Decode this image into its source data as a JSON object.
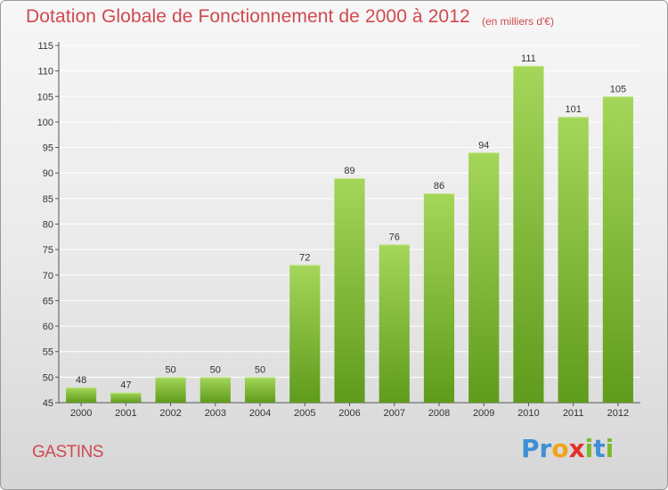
{
  "header": {
    "title": "Dotation Globale de Fonctionnement de 2000 à 2012",
    "unit_note": "(en milliers d'€)"
  },
  "footer": {
    "commune": "GASTINS",
    "logo_letters": [
      "P",
      "r",
      "o",
      "x",
      "i",
      "t",
      "i"
    ],
    "logo_colors": [
      "#3d8fd6",
      "#3d8fd6",
      "#f2a31a",
      "#e8302a",
      "#7cb82f",
      "#3d8fd6",
      "#7cb82f"
    ]
  },
  "colors": {
    "title": "#d0494f",
    "bar_light": "#a4d65a",
    "bar_dark": "#5f9b1c",
    "grid": "#ffffff"
  },
  "chart_data": {
    "type": "bar",
    "title": "Dotation Globale de Fonctionnement de 2000 à 2012",
    "subtitle": "(en milliers d'€)",
    "categories": [
      "2000",
      "2001",
      "2002",
      "2003",
      "2004",
      "2005",
      "2006",
      "2007",
      "2008",
      "2009",
      "2010",
      "2011",
      "2012"
    ],
    "values": [
      48,
      47,
      50,
      50,
      50,
      72,
      89,
      76,
      86,
      94,
      111,
      101,
      105
    ],
    "ylim": [
      45,
      115
    ],
    "yticks": [
      45,
      50,
      55,
      60,
      65,
      70,
      75,
      80,
      85,
      90,
      95,
      100,
      105,
      110,
      115
    ],
    "grid": true,
    "data_labels": true
  }
}
